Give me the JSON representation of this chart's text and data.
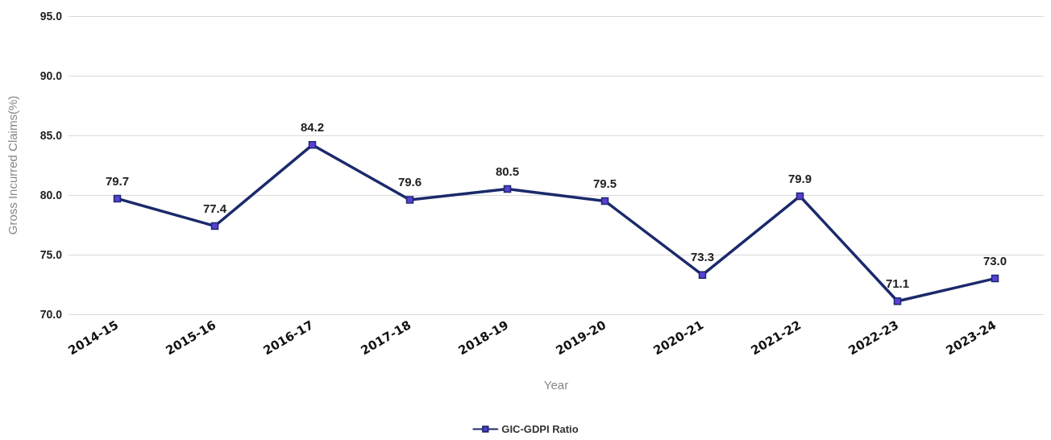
{
  "chart_data": {
    "type": "line",
    "xlabel": "Year",
    "ylabel": "Gross Incurred Claims(%)",
    "categories": [
      "2014-15",
      "2015-16",
      "2016-17",
      "2017-18",
      "2018-19",
      "2019-20",
      "2020-21",
      "2021-22",
      "2022-23",
      "2023-24"
    ],
    "series": [
      {
        "name": "GIC-GDPI Ratio",
        "color": "#1b2a6b",
        "values": [
          79.7,
          77.4,
          84.2,
          79.6,
          80.5,
          79.5,
          73.3,
          79.9,
          71.1,
          73.0
        ]
      }
    ],
    "value_labels": [
      "79.7",
      "77.4",
      "84.2",
      "79.6",
      "80.5",
      "79.5",
      "73.3",
      "79.9",
      "71.1",
      "73.0"
    ],
    "ylim": [
      70,
      95
    ],
    "yticks": [
      {
        "value": 70,
        "label": "70.0"
      },
      {
        "value": 75,
        "label": "75.0"
      },
      {
        "value": 80,
        "label": "80.0"
      },
      {
        "value": 85,
        "label": "85.0"
      },
      {
        "value": 90,
        "label": "90.0"
      },
      {
        "value": 95,
        "label": "95.0"
      }
    ],
    "grid": "y",
    "legend": "bottom",
    "marker": "square",
    "line_style": "solid"
  }
}
